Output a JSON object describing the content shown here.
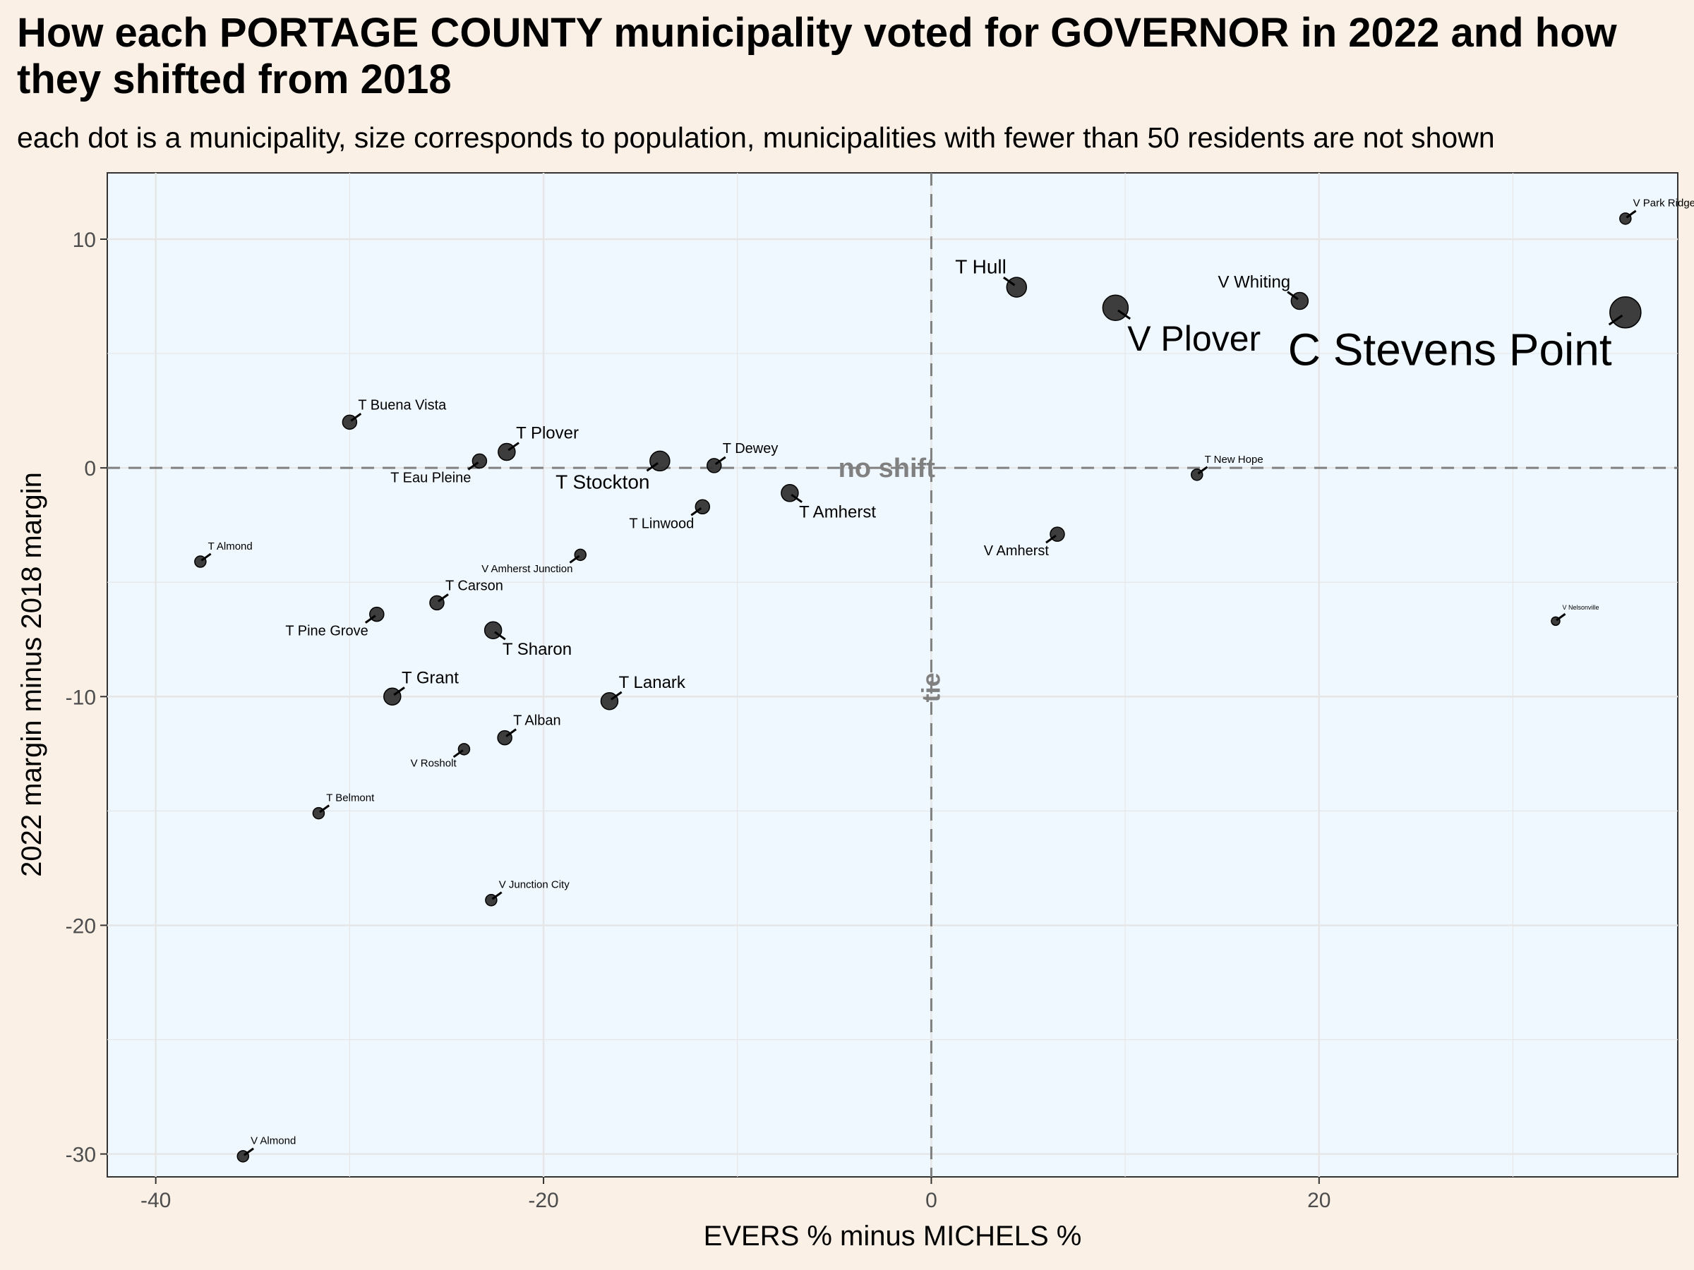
{
  "title": "How each PORTAGE COUNTY municipality voted for GOVERNOR in 2022 and how they shifted from 2018",
  "subtitle": "each dot is a municipality, size corresponds to population, municipalities with fewer than 50 residents are not shown",
  "chart_data": {
    "type": "scatter",
    "xlabel": "EVERS % minus MICHELS %",
    "ylabel": "2022 margin minus 2018 margin",
    "xlim": [
      -42.5,
      38.5
    ],
    "ylim": [
      -31.0,
      12.9
    ],
    "x_ticks": [
      -40,
      -20,
      0,
      20
    ],
    "y_ticks": [
      -30,
      -20,
      -10,
      0,
      10
    ],
    "grid": true,
    "legend": "none",
    "reference_lines": [
      {
        "axis": "y",
        "value": 0,
        "label": "no shift"
      },
      {
        "axis": "x",
        "value": 0,
        "label": "tie"
      }
    ],
    "colors": {
      "plot_background": "#f0f8ff",
      "page_background": "#faf0e6",
      "point": "#333333",
      "reference_line": "#808080"
    },
    "points": [
      {
        "name": "V Park Ridge",
        "x": 35.8,
        "y": 10.9,
        "size": 2,
        "label_dir": "ur"
      },
      {
        "name": "T Hull",
        "x": 4.4,
        "y": 7.9,
        "size": 5,
        "label_dir": "ul"
      },
      {
        "name": "V Plover",
        "x": 9.5,
        "y": 7.0,
        "size": 7,
        "label_dir": "dr"
      },
      {
        "name": "V Whiting",
        "x": 19.0,
        "y": 7.3,
        "size": 4,
        "label_dir": "ul"
      },
      {
        "name": "C Stevens Point",
        "x": 35.8,
        "y": 6.8,
        "size": 9,
        "label_dir": "dl"
      },
      {
        "name": "T Buena Vista",
        "x": -30.0,
        "y": 2.0,
        "size": 3,
        "label_dir": "ur"
      },
      {
        "name": "T Plover",
        "x": -21.9,
        "y": 0.7,
        "size": 4,
        "label_dir": "ur"
      },
      {
        "name": "T Eau Pleine",
        "x": -23.3,
        "y": 0.3,
        "size": 3,
        "label_dir": "dl"
      },
      {
        "name": "T Stockton",
        "x": -14.0,
        "y": 0.3,
        "size": 5,
        "label_dir": "dl"
      },
      {
        "name": "T Dewey",
        "x": -11.2,
        "y": 0.1,
        "size": 3,
        "label_dir": "ur"
      },
      {
        "name": "T New Hope",
        "x": 13.7,
        "y": -0.3,
        "size": 2,
        "label_dir": "ur"
      },
      {
        "name": "T Amherst",
        "x": -7.3,
        "y": -1.1,
        "size": 4,
        "label_dir": "dr"
      },
      {
        "name": "T Linwood",
        "x": -11.8,
        "y": -1.7,
        "size": 3,
        "label_dir": "dl"
      },
      {
        "name": "V Amherst",
        "x": 6.5,
        "y": -2.9,
        "size": 3,
        "label_dir": "dl"
      },
      {
        "name": "T Almond",
        "x": -37.7,
        "y": -4.1,
        "size": 2,
        "label_dir": "ur"
      },
      {
        "name": "V Amherst Junction",
        "x": -18.1,
        "y": -3.8,
        "size": 2,
        "label_dir": "dl"
      },
      {
        "name": "T Carson",
        "x": -25.5,
        "y": -5.9,
        "size": 3,
        "label_dir": "ur"
      },
      {
        "name": "T Pine Grove",
        "x": -28.6,
        "y": -6.4,
        "size": 3,
        "label_dir": "dl"
      },
      {
        "name": "T Sharon",
        "x": -22.6,
        "y": -7.1,
        "size": 4,
        "label_dir": "dr"
      },
      {
        "name": "V Nelsonville",
        "x": 32.2,
        "y": -6.7,
        "size": 1,
        "label_dir": "ur"
      },
      {
        "name": "T Grant",
        "x": -27.8,
        "y": -10.0,
        "size": 4,
        "label_dir": "ur"
      },
      {
        "name": "T Lanark",
        "x": -16.6,
        "y": -10.2,
        "size": 4,
        "label_dir": "ur"
      },
      {
        "name": "T Alban",
        "x": -22.0,
        "y": -11.8,
        "size": 3,
        "label_dir": "ur"
      },
      {
        "name": "V Rosholt",
        "x": -24.1,
        "y": -12.3,
        "size": 2,
        "label_dir": "dl"
      },
      {
        "name": "T Belmont",
        "x": -31.6,
        "y": -15.1,
        "size": 2,
        "label_dir": "ur"
      },
      {
        "name": "V Junction City",
        "x": -22.7,
        "y": -18.9,
        "size": 2,
        "label_dir": "ur"
      },
      {
        "name": "V Almond",
        "x": -35.5,
        "y": -30.1,
        "size": 2,
        "label_dir": "ur"
      }
    ]
  }
}
